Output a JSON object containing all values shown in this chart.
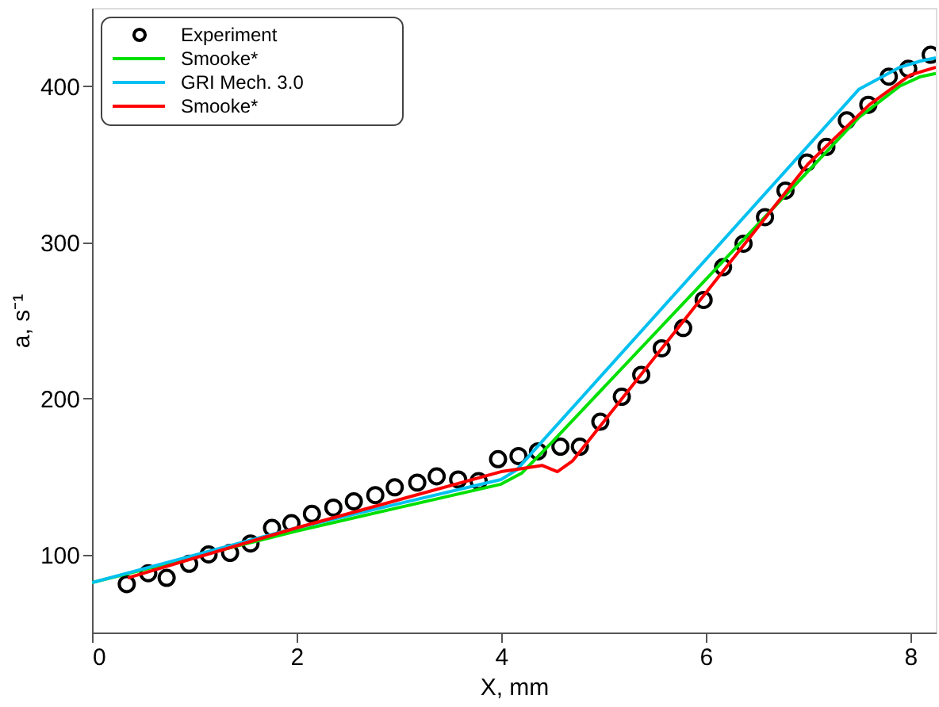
{
  "chart_data": {
    "type": "line",
    "xlabel": "X, mm",
    "ylabel": "a, s⁻¹",
    "xlim": [
      0,
      8.25
    ],
    "ylim": [
      50,
      450
    ],
    "xticks": [
      0,
      2,
      4,
      6,
      8
    ],
    "yticks": [
      100,
      200,
      300,
      400
    ],
    "grid": false,
    "legend": "top left",
    "series": [
      {
        "name": "Experiment",
        "type": "scatter",
        "marker": "circle",
        "color": "#000000",
        "x": [
          0.34,
          0.55,
          0.73,
          0.95,
          1.14,
          1.35,
          1.55,
          1.76,
          1.95,
          2.15,
          2.36,
          2.56,
          2.77,
          2.96,
          3.18,
          3.37,
          3.58,
          3.78,
          3.97,
          4.17,
          4.36,
          4.58,
          4.77,
          4.97,
          5.18,
          5.37,
          5.57,
          5.78,
          5.98,
          6.17,
          6.37,
          6.58,
          6.78,
          6.99,
          7.18,
          7.38,
          7.59,
          7.79,
          7.98,
          8.2
        ],
        "values": [
          81,
          88,
          85,
          94,
          100,
          101,
          107,
          117,
          120,
          126,
          130,
          134,
          138,
          143,
          146,
          150,
          148,
          147,
          161,
          163,
          166,
          169,
          169,
          185,
          201,
          215,
          232,
          245,
          263,
          284,
          299,
          316,
          333,
          351,
          361,
          378,
          388,
          406,
          411,
          420
        ]
      },
      {
        "name": "Smooke*",
        "color": "#00e000",
        "x": [
          0,
          2,
          4.0,
          4.2,
          4.5,
          7.5,
          7.9,
          8.1,
          8.25
        ],
        "values": [
          82,
          115,
          145,
          152,
          172,
          380,
          400,
          406,
          408
        ]
      },
      {
        "name": "GRI Mech. 3.0",
        "color": "#00c0f0",
        "x": [
          0,
          2,
          4.0,
          4.15,
          4.3,
          7.5,
          7.9,
          8.1,
          8.25
        ],
        "values": [
          82,
          117,
          148,
          154,
          165,
          398,
          412,
          416,
          418
        ]
      },
      {
        "name": "Smooke*",
        "color": "#ff0000",
        "x": [
          0.35,
          2,
          4.0,
          4.2,
          4.4,
          4.55,
          4.7,
          7.0,
          7.6,
          8.0,
          8.25
        ],
        "values": [
          85,
          117,
          153,
          155,
          157,
          153,
          160,
          350,
          388,
          407,
          412
        ]
      }
    ]
  }
}
